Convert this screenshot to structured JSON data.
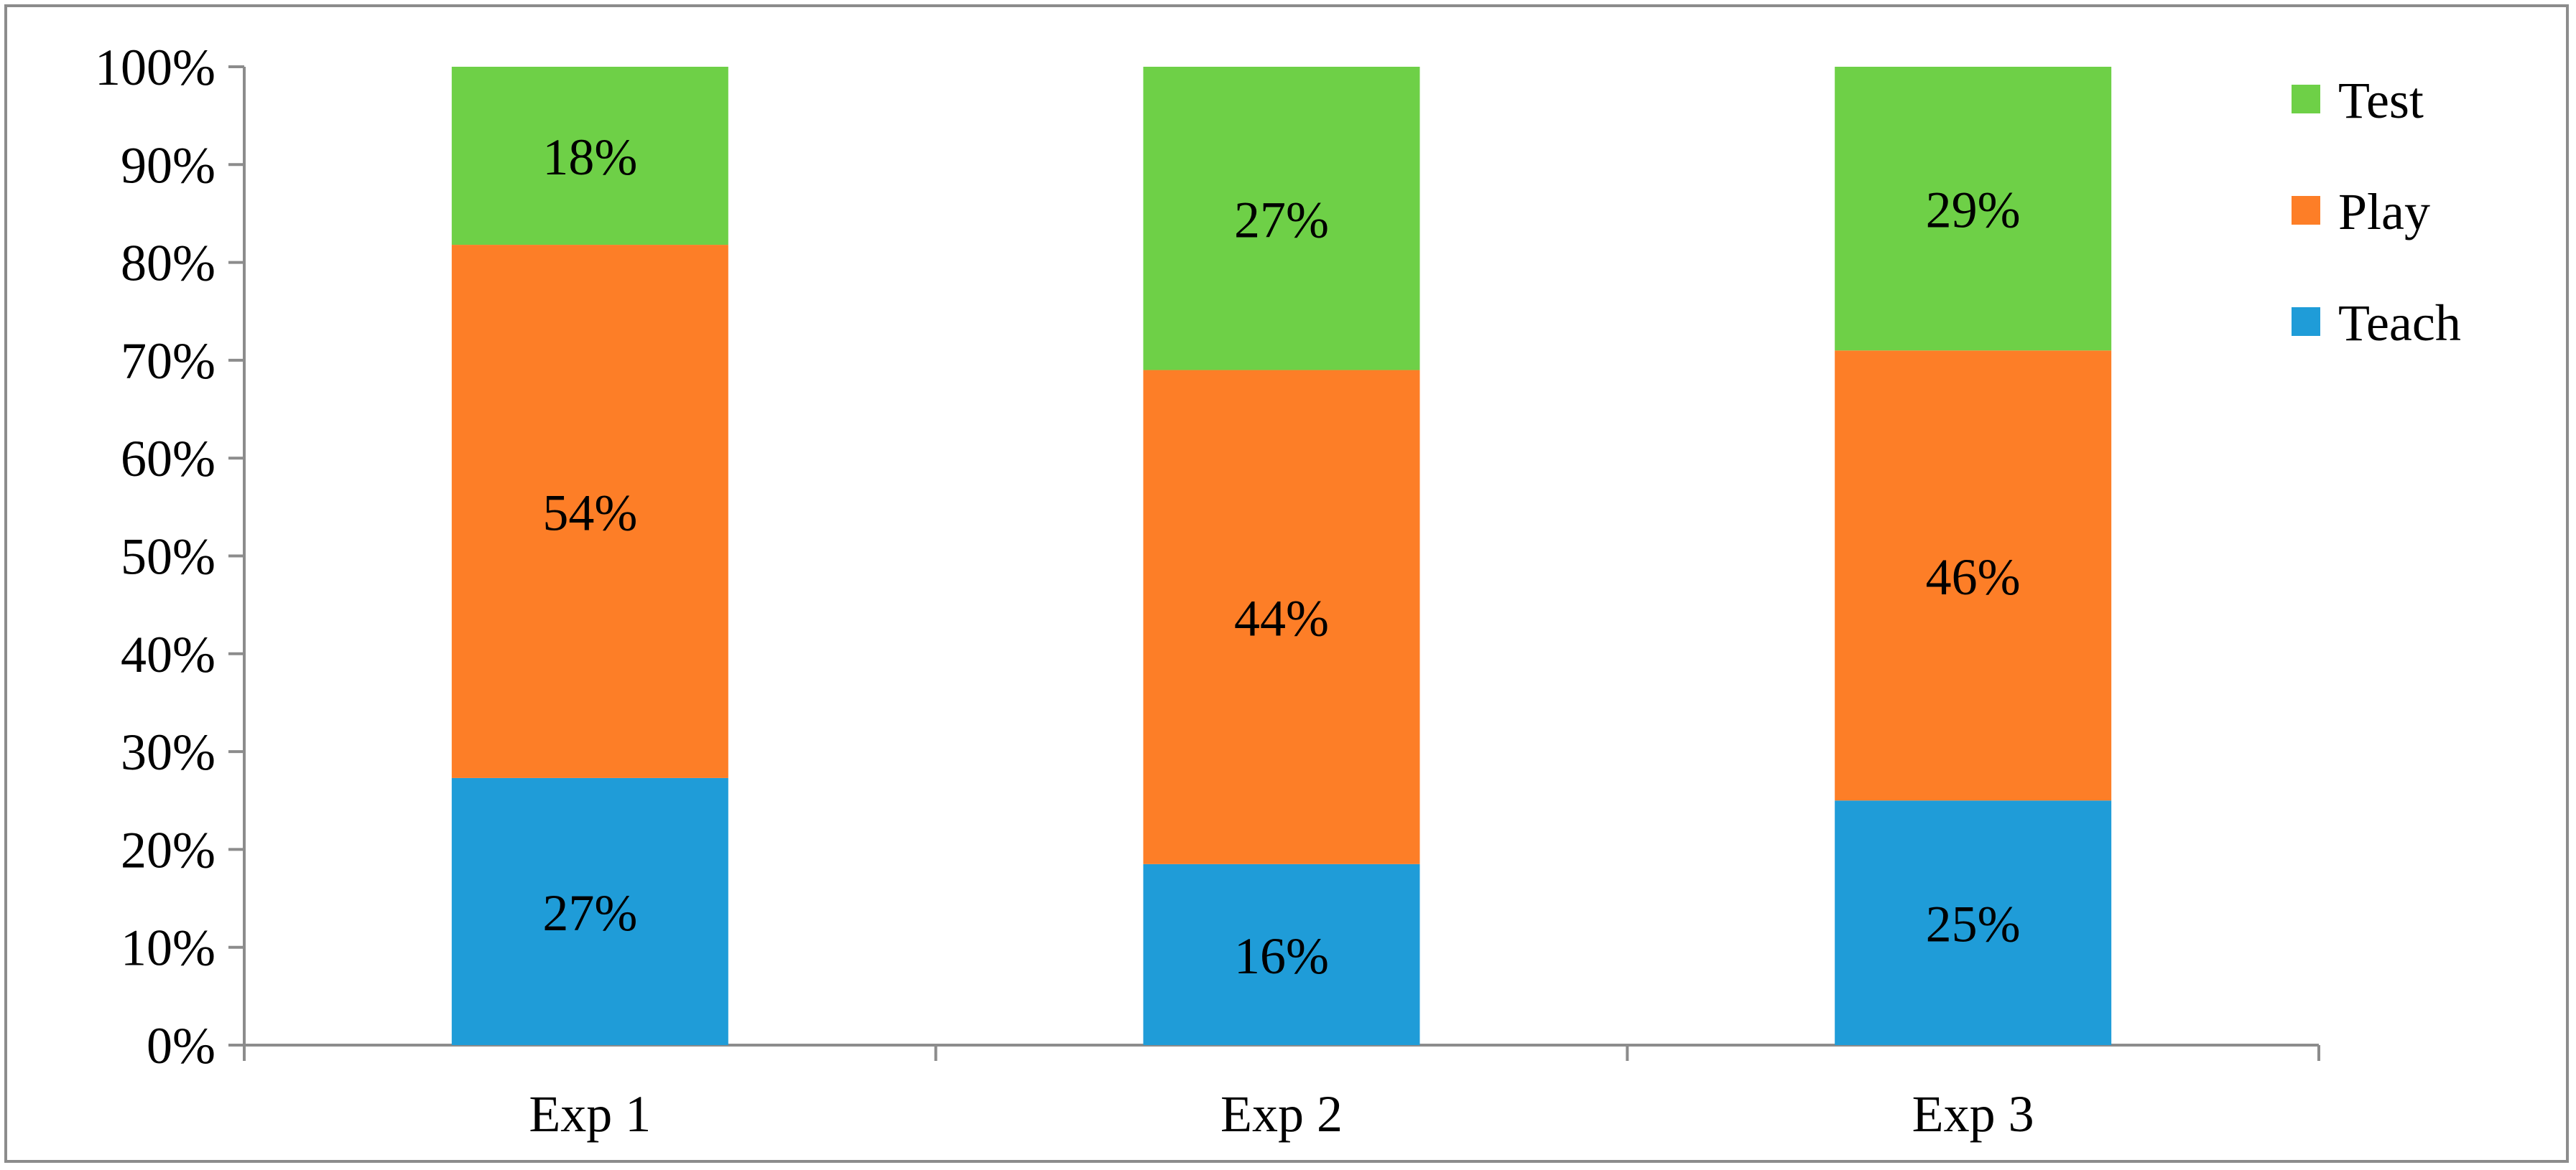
{
  "chart_data": {
    "type": "bar",
    "stacked": true,
    "categories": [
      "Exp 1",
      "Exp 2",
      "Exp 3"
    ],
    "series": [
      {
        "name": "Teach",
        "values": [
          27,
          16,
          25
        ],
        "labels": [
          "27%",
          "16%",
          "25%"
        ],
        "color": "#1f9cd8"
      },
      {
        "name": "Play",
        "values": [
          54,
          44,
          46
        ],
        "labels": [
          "54%",
          "44%",
          "46%"
        ],
        "color": "#fd7e27"
      },
      {
        "name": "Test",
        "values": [
          18,
          27,
          29
        ],
        "labels": [
          "18%",
          "27%",
          "29%"
        ],
        "color": "#6ed047"
      }
    ],
    "segment_spans": [
      [
        27.3,
        54.5,
        18.2
      ],
      [
        18.5,
        50.5,
        31.0
      ],
      [
        25.0,
        46.0,
        29.0
      ]
    ],
    "ylim": [
      0,
      100
    ],
    "yticks": [
      "0%",
      "10%",
      "20%",
      "30%",
      "40%",
      "50%",
      "60%",
      "70%",
      "80%",
      "90%",
      "100%"
    ],
    "title": "",
    "xlabel": "",
    "ylabel": "",
    "grid": false,
    "legend_position": "top-right",
    "legend_order": [
      "Test",
      "Play",
      "Teach"
    ]
  }
}
